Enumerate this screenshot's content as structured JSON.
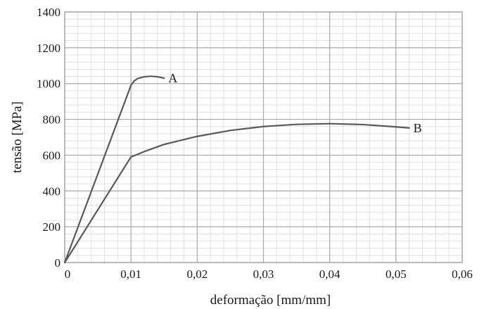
{
  "chart_data": {
    "type": "line",
    "title": "",
    "xlabel": "deformação [mm/mm]",
    "ylabel": "tensão [MPa]",
    "xlim": [
      0,
      0.06
    ],
    "ylim": [
      0,
      1400
    ],
    "x_ticks": [
      0,
      0.01,
      0.02,
      0.03,
      0.04,
      0.05,
      0.06
    ],
    "x_tick_labels": [
      "0",
      "0,01",
      "0,02",
      "0,03",
      "0,04",
      "0,05",
      "0,06"
    ],
    "y_ticks": [
      0,
      200,
      400,
      600,
      800,
      1000,
      1200,
      1400
    ],
    "y_tick_labels": [
      "0",
      "200",
      "400",
      "600",
      "800",
      "1000",
      "1200",
      "1400"
    ],
    "grid": true,
    "legend": "none",
    "line_color": "#595959",
    "series": [
      {
        "name": "A",
        "x": [
          0,
          0.01,
          0.0105,
          0.011,
          0.012,
          0.013,
          0.014,
          0.015
        ],
        "y": [
          0,
          990,
          1015,
          1028,
          1038,
          1041,
          1038,
          1030
        ]
      },
      {
        "name": "B",
        "x": [
          0,
          0.01,
          0.012,
          0.015,
          0.02,
          0.025,
          0.03,
          0.035,
          0.04,
          0.045,
          0.05,
          0.052
        ],
        "y": [
          0,
          590,
          620,
          660,
          705,
          738,
          760,
          772,
          776,
          771,
          758,
          752
        ]
      }
    ]
  }
}
